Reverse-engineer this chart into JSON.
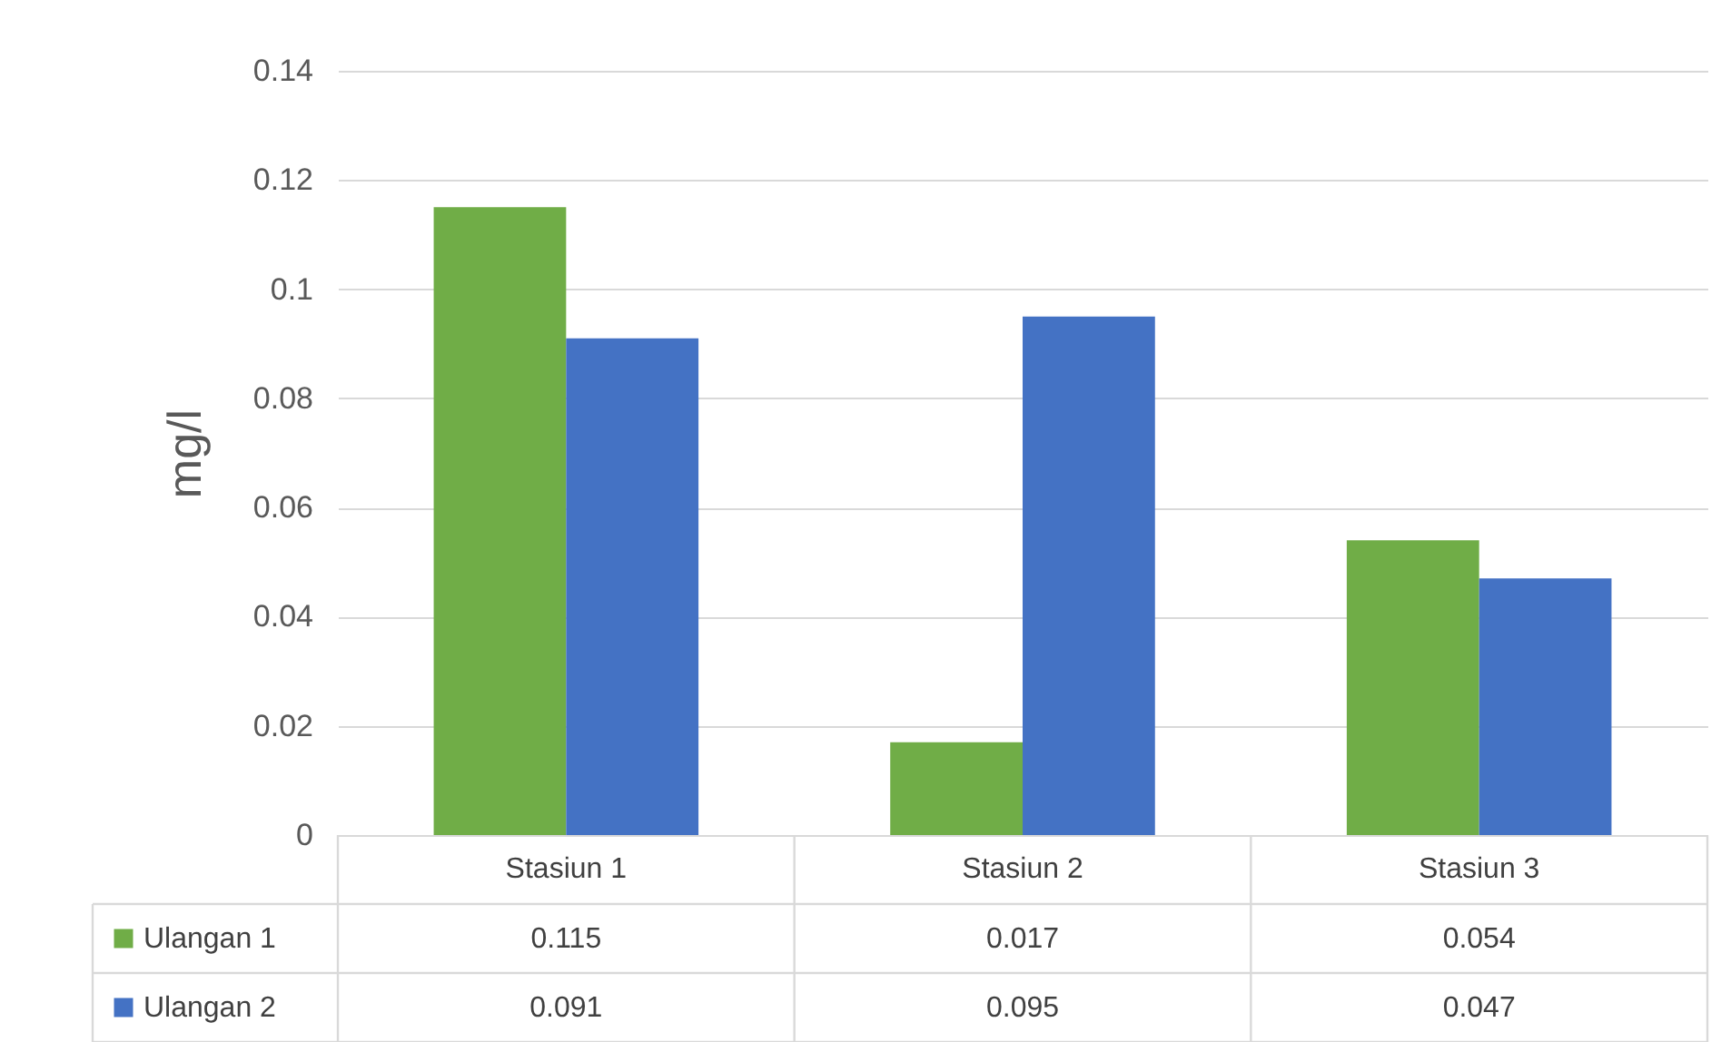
{
  "chart_data": {
    "type": "bar",
    "ylabel": "mg/l",
    "categories": [
      "Stasiun 1",
      "Stasiun 2",
      "Stasiun 3"
    ],
    "series": [
      {
        "name": "Ulangan 1",
        "color": "#70ad47",
        "values": [
          0.115,
          0.017,
          0.054
        ]
      },
      {
        "name": "Ulangan 2",
        "color": "#4472c4",
        "values": [
          0.091,
          0.095,
          0.047
        ]
      }
    ],
    "ylim": [
      0,
      0.14
    ],
    "yticks": [
      0,
      0.02,
      0.04,
      0.06,
      0.08,
      0.1,
      0.12,
      0.14
    ],
    "grid": "y",
    "data_labels": true,
    "legend": "bottom"
  }
}
